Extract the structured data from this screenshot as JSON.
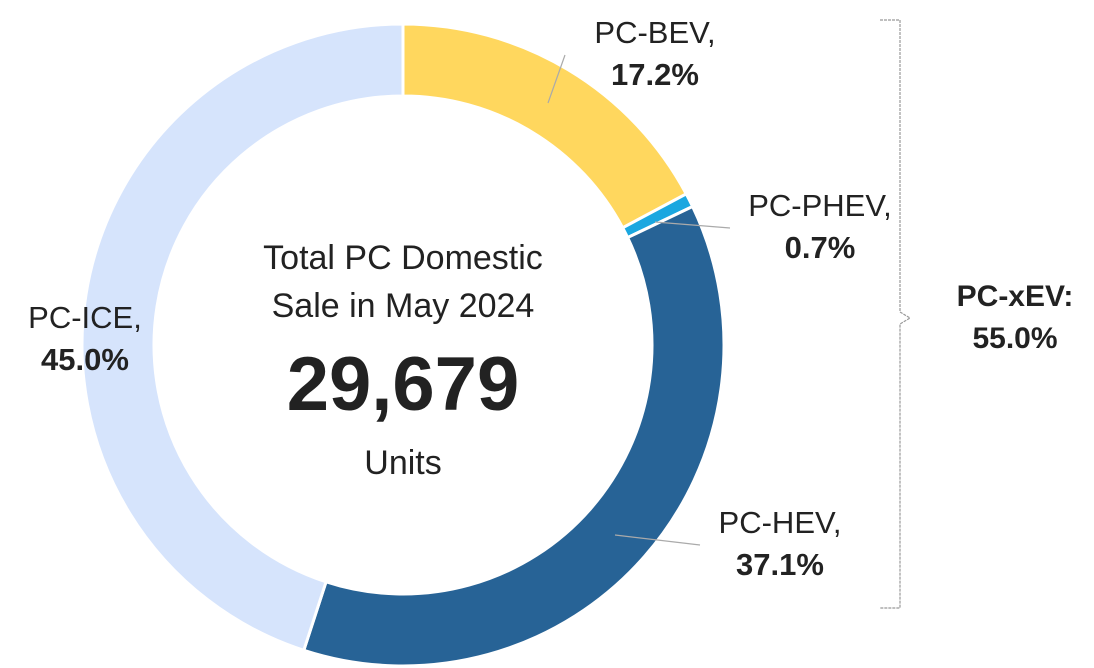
{
  "chart_data": {
    "type": "pie",
    "categories": [
      "PC-BEV,",
      "PC-PHEV,",
      "PC-HEV,",
      "PC-ICE,"
    ],
    "values": [
      17.2,
      0.7,
      37.1,
      45.0
    ],
    "value_labels": [
      "17.2%",
      "0.7%",
      "37.1%",
      "45.0%"
    ],
    "colors": [
      "#ffd75e",
      "#1aa7e0",
      "#276396",
      "#d6e4fc"
    ],
    "donut": true,
    "center": {
      "title_lines": [
        "Total PC Domestic",
        "Sale in May 2024"
      ],
      "value": "29,679",
      "unit": "Units"
    },
    "bracket": {
      "label": "PC-xEV:",
      "value_label": "55.0%"
    }
  }
}
